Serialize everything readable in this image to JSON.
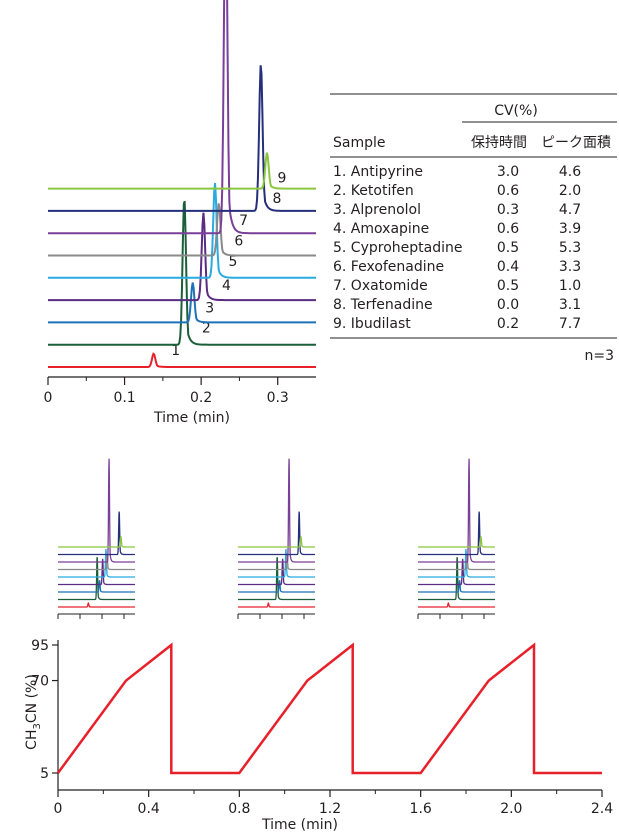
{
  "chart_data": [
    {
      "type": "line",
      "xlabel": "Time (min)",
      "ylabel": "",
      "xlim": [
        0,
        0.35
      ],
      "x_ticks": [
        "0",
        "0.1",
        "0.2",
        "0.3"
      ],
      "series": [
        {
          "name": "1",
          "color": "#e8202a",
          "baseline": 0,
          "peak_time": 0.138,
          "peak_height": 0.14
        },
        {
          "name": "2",
          "color": "#1b5e3a",
          "baseline": 1,
          "peak_time": 0.178,
          "peak_height": 1.55
        },
        {
          "name": "3",
          "color": "#1f72b8",
          "baseline": 2,
          "peak_time": 0.189,
          "peak_height": 0.42
        },
        {
          "name": "4",
          "color": "#5b2c83",
          "baseline": 3,
          "peak_time": 0.203,
          "peak_height": 0.92
        },
        {
          "name": "5",
          "color": "#29abe2",
          "baseline": 4,
          "peak_time": 0.218,
          "peak_height": 1.0
        },
        {
          "name": "6",
          "color": "#8a8a8a",
          "baseline": 5,
          "peak_time": 0.223,
          "peak_height": 0.55
        },
        {
          "name": "7",
          "color": "#7a3f98",
          "baseline": 6,
          "peak_time": 0.232,
          "peak_height": 3.7
        },
        {
          "name": "8",
          "color": "#262f7c",
          "baseline": 7,
          "peak_time": 0.278,
          "peak_height": 1.55
        },
        {
          "name": "9",
          "color": "#8cc63f",
          "baseline": 8,
          "peak_time": 0.286,
          "peak_height": 0.38
        }
      ]
    },
    {
      "type": "line",
      "xlabel": "Time (min)",
      "ylabel": "CH3CN (%)",
      "xlim": [
        0,
        2.4
      ],
      "ylim": [
        5,
        95
      ],
      "x_ticks": [
        "0",
        "0.4",
        "0.8",
        "1.2",
        "1.6",
        "2.0",
        "2.4"
      ],
      "y_ticks": [
        "5",
        "70",
        "95"
      ],
      "series": [
        {
          "name": "",
          "color": "#e8202a",
          "x": [
            0,
            0.3,
            0.5,
            0.5,
            0.8,
            1.1,
            1.3,
            1.3,
            1.6,
            1.9,
            2.1,
            2.1,
            2.4
          ],
          "y": [
            5,
            70,
            95,
            5,
            5,
            70,
            95,
            5,
            5,
            70,
            95,
            5,
            5
          ]
        }
      ]
    }
  ],
  "table": {
    "group_header": "CV(%)",
    "col_sample": "Sample",
    "col_rt": "保持時間",
    "col_area": "ピーク面積",
    "rows": [
      {
        "sample": "1. Antipyrine",
        "rt": "3.0",
        "area": "4.6"
      },
      {
        "sample": "2. Ketotifen",
        "rt": "0.6",
        "area": "2.0"
      },
      {
        "sample": "3. Alprenolol",
        "rt": "0.3",
        "area": "4.7"
      },
      {
        "sample": "4. Amoxapine",
        "rt": "0.6",
        "area": "3.9"
      },
      {
        "sample": "5. Cyproheptadine",
        "rt": "0.5",
        "area": "5.3"
      },
      {
        "sample": "6. Fexofenadine",
        "rt": "0.4",
        "area": "3.3"
      },
      {
        "sample": "7. Oxatomide",
        "rt": "0.5",
        "area": "1.0"
      },
      {
        "sample": "8. Terfenadine",
        "rt": "0.0",
        "area": "3.1"
      },
      {
        "sample": "9. Ibudilast",
        "rt": "0.2",
        "area": "7.7"
      }
    ],
    "note": "n=3"
  },
  "gradient_ylabel": {
    "main": "CH",
    "sub": "3",
    "rest": "CN (%)"
  }
}
